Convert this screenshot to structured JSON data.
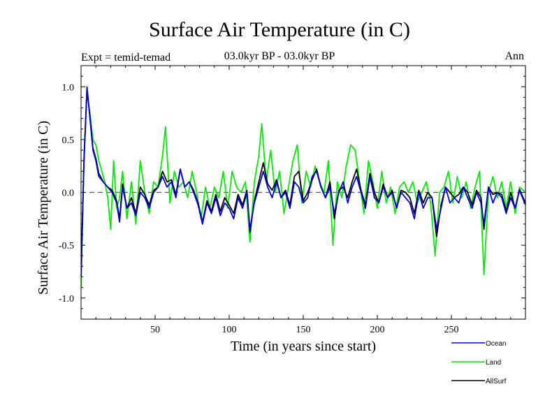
{
  "header": {
    "title": "Surface Air Temperature (in C)",
    "expt": "Expt = temid-temad",
    "period": "03.0kyr BP - 03.0kyr BP",
    "season": "Ann"
  },
  "chart_data": {
    "type": "line",
    "title": "Surface Air Temperature (in C)",
    "xlabel": "Time (in years since start)",
    "ylabel": "Surface Air Temperature (in C)",
    "xlim": [
      0,
      300
    ],
    "ylim": [
      -1.2,
      1.2
    ],
    "xticks": [
      50,
      100,
      150,
      200,
      250
    ],
    "yticks": [
      -1.0,
      -0.5,
      0.0,
      0.5,
      1.0
    ],
    "xtick_labels": [
      "50",
      "100",
      "150",
      "200",
      "250"
    ],
    "ytick_labels": [
      "-1.0",
      "-0.5",
      "0.0",
      "0.5",
      "1.0"
    ],
    "reference_line": 0.0,
    "legend_position": "below-right",
    "series": [
      {
        "name": "Ocean",
        "color": "#0000dd",
        "points": [
          [
            0,
            -0.8
          ],
          [
            2,
            0.3
          ],
          [
            4,
            1.0
          ],
          [
            6,
            0.7
          ],
          [
            8,
            0.4
          ],
          [
            10,
            0.3
          ],
          [
            12,
            0.15
          ],
          [
            15,
            0.1
          ],
          [
            18,
            0.05
          ],
          [
            21,
            0.0
          ],
          [
            24,
            -0.1
          ],
          [
            26,
            -0.28
          ],
          [
            28,
            0.05
          ],
          [
            31,
            -0.15
          ],
          [
            34,
            -0.1
          ],
          [
            37,
            -0.22
          ],
          [
            40,
            0.0
          ],
          [
            43,
            -0.05
          ],
          [
            46,
            -0.15
          ],
          [
            49,
            0.0
          ],
          [
            52,
            0.05
          ],
          [
            55,
            0.15
          ],
          [
            58,
            0.05
          ],
          [
            61,
            0.1
          ],
          [
            64,
            -0.05
          ],
          [
            67,
            0.22
          ],
          [
            70,
            0.05
          ],
          [
            73,
            0.1
          ],
          [
            76,
            0.0
          ],
          [
            79,
            -0.12
          ],
          [
            82,
            -0.3
          ],
          [
            85,
            -0.1
          ],
          [
            88,
            -0.2
          ],
          [
            91,
            -0.05
          ],
          [
            94,
            -0.22
          ],
          [
            97,
            -0.1
          ],
          [
            100,
            -0.15
          ],
          [
            103,
            -0.25
          ],
          [
            106,
            -0.05
          ],
          [
            109,
            -0.15
          ],
          [
            112,
            0.0
          ],
          [
            114,
            -0.35
          ],
          [
            117,
            -0.1
          ],
          [
            120,
            0.05
          ],
          [
            123,
            0.2
          ],
          [
            126,
            0.05
          ],
          [
            129,
            -0.05
          ],
          [
            132,
            0.1
          ],
          [
            135,
            -0.05
          ],
          [
            138,
            0.0
          ],
          [
            141,
            -0.15
          ],
          [
            144,
            0.1
          ],
          [
            147,
            0.05
          ],
          [
            150,
            -0.1
          ],
          [
            153,
            -0.05
          ],
          [
            156,
            0.15
          ],
          [
            159,
            0.2
          ],
          [
            162,
            0.05
          ],
          [
            165,
            -0.05
          ],
          [
            168,
            0.05
          ],
          [
            171,
            -0.2
          ],
          [
            174,
            0.0
          ],
          [
            177,
            0.1
          ],
          [
            180,
            -0.1
          ],
          [
            183,
            0.05
          ],
          [
            186,
            0.15
          ],
          [
            189,
            0.0
          ],
          [
            192,
            -0.15
          ],
          [
            195,
            0.15
          ],
          [
            198,
            -0.05
          ],
          [
            201,
            -0.1
          ],
          [
            204,
            0.05
          ],
          [
            207,
            -0.05
          ],
          [
            210,
            0.0
          ],
          [
            213,
            -0.15
          ],
          [
            216,
            0.0
          ],
          [
            219,
            -0.05
          ],
          [
            222,
            -0.1
          ],
          [
            225,
            -0.25
          ],
          [
            228,
            0.0
          ],
          [
            231,
            -0.15
          ],
          [
            234,
            -0.05
          ],
          [
            237,
            -0.05
          ],
          [
            240,
            -0.35
          ],
          [
            243,
            -0.15
          ],
          [
            246,
            0.05
          ],
          [
            249,
            -0.1
          ],
          [
            252,
            -0.05
          ],
          [
            255,
            -0.1
          ],
          [
            258,
            0.05
          ],
          [
            261,
            -0.05
          ],
          [
            264,
            -0.15
          ],
          [
            267,
            0.0
          ],
          [
            270,
            -0.1
          ],
          [
            272,
            -0.3
          ],
          [
            275,
            0.05
          ],
          [
            278,
            -0.1
          ],
          [
            281,
            0.0
          ],
          [
            284,
            -0.05
          ],
          [
            287,
            -0.2
          ],
          [
            290,
            -0.05
          ],
          [
            293,
            -0.15
          ],
          [
            296,
            0.02
          ],
          [
            300,
            -0.12
          ]
        ]
      },
      {
        "name": "Land",
        "color": "#00ee00",
        "points": [
          [
            0,
            -0.9
          ],
          [
            2,
            0.35
          ],
          [
            4,
            0.95
          ],
          [
            6,
            0.75
          ],
          [
            8,
            0.5
          ],
          [
            10,
            0.45
          ],
          [
            12,
            0.3
          ],
          [
            14,
            0.2
          ],
          [
            16,
            0.1
          ],
          [
            18,
            -0.05
          ],
          [
            20,
            -0.35
          ],
          [
            22,
            0.3
          ],
          [
            24,
            -0.15
          ],
          [
            26,
            -0.05
          ],
          [
            28,
            0.2
          ],
          [
            31,
            -0.25
          ],
          [
            34,
            0.1
          ],
          [
            37,
            -0.3
          ],
          [
            40,
            0.3
          ],
          [
            43,
            0.0
          ],
          [
            46,
            -0.2
          ],
          [
            49,
            0.1
          ],
          [
            52,
            0.05
          ],
          [
            55,
            0.35
          ],
          [
            57,
            0.62
          ],
          [
            60,
            -0.1
          ],
          [
            63,
            0.2
          ],
          [
            66,
            0.05
          ],
          [
            69,
            0.1
          ],
          [
            72,
            -0.05
          ],
          [
            75,
            0.2
          ],
          [
            78,
            0.0
          ],
          [
            81,
            -0.25
          ],
          [
            84,
            0.05
          ],
          [
            87,
            -0.15
          ],
          [
            90,
            0.05
          ],
          [
            93,
            -0.05
          ],
          [
            96,
            0.2
          ],
          [
            99,
            -0.15
          ],
          [
            102,
            0.2
          ],
          [
            105,
            0.05
          ],
          [
            108,
            0.0
          ],
          [
            111,
            0.1
          ],
          [
            114,
            -0.47
          ],
          [
            117,
            0.1
          ],
          [
            120,
            0.35
          ],
          [
            122,
            0.65
          ],
          [
            125,
            0.1
          ],
          [
            128,
            0.4
          ],
          [
            131,
            0.0
          ],
          [
            134,
            0.2
          ],
          [
            137,
            -0.2
          ],
          [
            140,
            0.05
          ],
          [
            143,
            0.3
          ],
          [
            146,
            0.45
          ],
          [
            149,
            -0.1
          ],
          [
            152,
            0.2
          ],
          [
            155,
            0.05
          ],
          [
            158,
            0.25
          ],
          [
            161,
            0.1
          ],
          [
            164,
            0.0
          ],
          [
            167,
            0.3
          ],
          [
            170,
            -0.5
          ],
          [
            173,
            0.1
          ],
          [
            176,
            -0.05
          ],
          [
            179,
            0.25
          ],
          [
            182,
            0.45
          ],
          [
            185,
            0.4
          ],
          [
            188,
            0.1
          ],
          [
            191,
            -0.2
          ],
          [
            194,
            0.3
          ],
          [
            197,
            0.1
          ],
          [
            200,
            -0.15
          ],
          [
            203,
            0.2
          ],
          [
            206,
            -0.1
          ],
          [
            209,
            0.05
          ],
          [
            212,
            -0.2
          ],
          [
            215,
            0.05
          ],
          [
            218,
            0.1
          ],
          [
            221,
            0.0
          ],
          [
            224,
            0.1
          ],
          [
            227,
            -0.1
          ],
          [
            230,
            0.0
          ],
          [
            233,
            0.1
          ],
          [
            236,
            -0.1
          ],
          [
            239,
            -0.6
          ],
          [
            242,
            0.0
          ],
          [
            245,
            0.05
          ],
          [
            248,
            0.2
          ],
          [
            251,
            -0.1
          ],
          [
            254,
            0.15
          ],
          [
            257,
            -0.05
          ],
          [
            260,
            0.1
          ],
          [
            263,
            -0.15
          ],
          [
            266,
            0.05
          ],
          [
            269,
            0.2
          ],
          [
            272,
            -0.78
          ],
          [
            275,
            0.0
          ],
          [
            278,
            0.15
          ],
          [
            281,
            -0.05
          ],
          [
            284,
            0.1
          ],
          [
            287,
            -0.15
          ],
          [
            290,
            0.1
          ],
          [
            293,
            -0.2
          ],
          [
            296,
            0.05
          ],
          [
            300,
            0.0
          ]
        ]
      },
      {
        "name": "AllSurf",
        "color": "#000000",
        "points": [
          [
            0,
            -0.75
          ],
          [
            2,
            0.3
          ],
          [
            4,
            0.98
          ],
          [
            6,
            0.72
          ],
          [
            8,
            0.42
          ],
          [
            10,
            0.32
          ],
          [
            12,
            0.18
          ],
          [
            15,
            0.1
          ],
          [
            18,
            0.05
          ],
          [
            21,
            0.02
          ],
          [
            24,
            -0.08
          ],
          [
            26,
            -0.25
          ],
          [
            28,
            0.08
          ],
          [
            31,
            -0.15
          ],
          [
            34,
            -0.05
          ],
          [
            37,
            -0.2
          ],
          [
            40,
            0.05
          ],
          [
            43,
            -0.02
          ],
          [
            46,
            -0.12
          ],
          [
            49,
            0.02
          ],
          [
            52,
            0.05
          ],
          [
            55,
            0.2
          ],
          [
            58,
            0.1
          ],
          [
            61,
            0.12
          ],
          [
            64,
            -0.02
          ],
          [
            67,
            0.22
          ],
          [
            70,
            0.05
          ],
          [
            73,
            0.1
          ],
          [
            76,
            0.02
          ],
          [
            79,
            -0.1
          ],
          [
            82,
            -0.28
          ],
          [
            85,
            -0.08
          ],
          [
            88,
            -0.18
          ],
          [
            91,
            -0.02
          ],
          [
            94,
            -0.18
          ],
          [
            97,
            -0.05
          ],
          [
            100,
            -0.12
          ],
          [
            103,
            -0.2
          ],
          [
            106,
            -0.02
          ],
          [
            109,
            -0.12
          ],
          [
            112,
            0.02
          ],
          [
            114,
            -0.38
          ],
          [
            117,
            -0.08
          ],
          [
            120,
            0.1
          ],
          [
            123,
            0.28
          ],
          [
            126,
            0.08
          ],
          [
            129,
            0.02
          ],
          [
            132,
            0.12
          ],
          [
            135,
            -0.05
          ],
          [
            138,
            0.02
          ],
          [
            141,
            -0.12
          ],
          [
            144,
            0.15
          ],
          [
            147,
            0.2
          ],
          [
            150,
            -0.08
          ],
          [
            153,
            0.0
          ],
          [
            156,
            0.12
          ],
          [
            159,
            0.22
          ],
          [
            162,
            0.05
          ],
          [
            165,
            -0.05
          ],
          [
            168,
            0.1
          ],
          [
            171,
            -0.25
          ],
          [
            174,
            0.02
          ],
          [
            177,
            0.05
          ],
          [
            180,
            -0.05
          ],
          [
            183,
            0.1
          ],
          [
            186,
            0.22
          ],
          [
            189,
            0.02
          ],
          [
            192,
            -0.12
          ],
          [
            195,
            0.18
          ],
          [
            198,
            0.0
          ],
          [
            201,
            -0.1
          ],
          [
            204,
            0.08
          ],
          [
            207,
            -0.05
          ],
          [
            210,
            0.02
          ],
          [
            213,
            -0.15
          ],
          [
            216,
            0.02
          ],
          [
            219,
            0.0
          ],
          [
            222,
            -0.05
          ],
          [
            225,
            -0.2
          ],
          [
            228,
            0.02
          ],
          [
            231,
            -0.1
          ],
          [
            234,
            0.0
          ],
          [
            237,
            -0.05
          ],
          [
            240,
            -0.42
          ],
          [
            243,
            -0.12
          ],
          [
            246,
            0.05
          ],
          [
            249,
            0.0
          ],
          [
            252,
            -0.05
          ],
          [
            255,
            -0.02
          ],
          [
            258,
            0.05
          ],
          [
            261,
            0.0
          ],
          [
            264,
            -0.12
          ],
          [
            267,
            0.02
          ],
          [
            270,
            -0.05
          ],
          [
            272,
            -0.35
          ],
          [
            275,
            0.05
          ],
          [
            278,
            -0.02
          ],
          [
            281,
            0.0
          ],
          [
            284,
            -0.02
          ],
          [
            287,
            -0.18
          ],
          [
            290,
            0.0
          ],
          [
            293,
            -0.15
          ],
          [
            296,
            0.03
          ],
          [
            300,
            -0.1
          ]
        ]
      }
    ]
  }
}
